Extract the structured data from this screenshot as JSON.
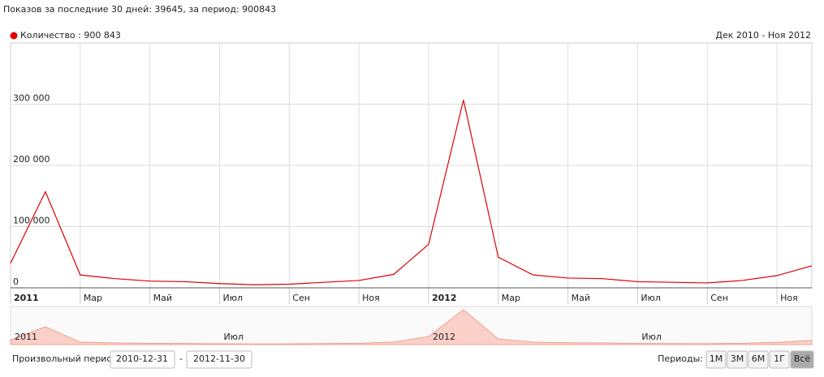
{
  "header": "Показов за последние 30 дней: 39645, за период: 900843",
  "chart_data": {
    "type": "line",
    "subtitle": "Дек 2010 - Ноя 2012",
    "categories": [
      "2011",
      null,
      "Мар",
      null,
      "Май",
      null,
      "Июл",
      null,
      "Сен",
      null,
      "Ноя",
      null,
      "2012",
      null,
      "Мар",
      null,
      "Май",
      null,
      "Июл",
      null,
      "Сен",
      null,
      "Ноя",
      null
    ],
    "series": [
      {
        "name": "Количество : 900 843",
        "color": "#e00000",
        "values": [
          40000,
          157000,
          21000,
          15000,
          11000,
          10000,
          7000,
          5000,
          6000,
          9000,
          12000,
          22000,
          71000,
          307000,
          50000,
          21000,
          16000,
          15000,
          10000,
          9000,
          8000,
          12000,
          20000,
          36000
        ]
      }
    ],
    "ylim": [
      0,
      400000
    ],
    "yticks": [
      0,
      {
        "value": 100000,
        "label": "100 000"
      },
      {
        "value": 200000,
        "label": "200 000"
      },
      {
        "value": 300000,
        "label": "300 000"
      }
    ],
    "grid": true,
    "navigator_labels": [
      "2011",
      "Июл",
      "2012",
      "Июл"
    ]
  },
  "controls": {
    "custom_period_label": "Произвольный период:",
    "from": "2010-12-31",
    "separator": "-",
    "to": "2012-11-30",
    "periods_label": "Периоды:",
    "periods": [
      "1М",
      "3М",
      "6М",
      "1Г",
      "Всё"
    ],
    "active_period": 4
  }
}
